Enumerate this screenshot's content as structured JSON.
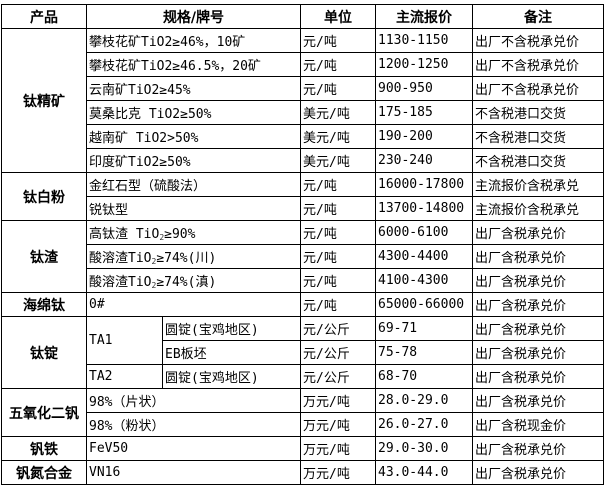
{
  "header": [
    "产品",
    "规格/牌号",
    "单位",
    "主流报价",
    "备注"
  ],
  "rows": [
    {
      "product": "钛精矿",
      "rowspan": 6,
      "spec": [
        "攀枝花矿TiO2≥46%，10矿"
      ],
      "unit": "元/吨",
      "price": "1130-1150",
      "note": "出厂不含税承兑价"
    },
    {
      "spec": [
        "攀枝花矿TiO2≥46.5%，20矿"
      ],
      "unit": "元/吨",
      "price": "1200-1250",
      "note": "出厂不含税承兑价"
    },
    {
      "spec": [
        "云南矿TiO2≥45%"
      ],
      "unit": "元/吨",
      "price": "900-950",
      "note": "出厂不含税承兑价"
    },
    {
      "spec": [
        "莫桑比克 TiO2≥50%"
      ],
      "unit": "美元/吨",
      "price": "175-185",
      "note": "不含税港口交货"
    },
    {
      "spec": [
        "越南矿 TiO2>50%"
      ],
      "unit": "美元/吨",
      "price": "190-200",
      "note": "不含税港口交货"
    },
    {
      "spec": [
        "印度矿TiO2≥50%"
      ],
      "unit": "美元/吨",
      "price": "230-240",
      "note": "不含税港口交货"
    },
    {
      "product": "钛白粉",
      "rowspan": 2,
      "spec": [
        "金红石型（硫酸法）"
      ],
      "unit": "元/吨",
      "price": "16000-17800",
      "note": "主流报价含税承兑"
    },
    {
      "spec": [
        "锐钛型"
      ],
      "unit": "元/吨",
      "price": "13700-14800",
      "note": "主流报价含税承兑"
    },
    {
      "product": "钛渣",
      "rowspan": 3,
      "spec": [
        "高钛渣 TiO",
        "2",
        "≥90%"
      ],
      "unit": "元/吨",
      "price": "6000-6100",
      "note": "出厂含税承兑价"
    },
    {
      "spec": [
        "酸溶渣TiO",
        "2",
        "≥74%(川)"
      ],
      "unit": "元/吨",
      "price": "4300-4400",
      "note": "出厂含税承兑价"
    },
    {
      "spec": [
        "酸溶渣TiO",
        "2",
        "≥74%(滇)"
      ],
      "unit": "元/吨",
      "price": "4100-4300",
      "note": "出厂含税承兑价"
    },
    {
      "product": "海绵钛",
      "rowspan": 1,
      "spec": [
        "0#"
      ],
      "unit": "元/吨",
      "price": "65000-66000",
      "note": "出厂含税承兑价"
    },
    {
      "product": "钛锭",
      "rowspan": 3,
      "grade": "TA1",
      "grade_rowspan": 2,
      "form": "圆锭(宝鸡地区)",
      "unit": "元/公斤",
      "price": "69-71",
      "note": "出厂含税承兑价"
    },
    {
      "form": "EB板坯",
      "unit": "元/公斤",
      "price": "75-78",
      "note": "出厂含税承兑价"
    },
    {
      "grade": "TA2",
      "grade_rowspan": 1,
      "form": "圆锭(宝鸡地区)",
      "unit": "元/公斤",
      "price": "68-70",
      "note": "出厂含税承兑价"
    },
    {
      "product": "五氧化二钒",
      "rowspan": 2,
      "spec": [
        "98%（片状）"
      ],
      "unit": "万元/吨",
      "price": "28.0-29.0",
      "note": "出厂含税承兑价"
    },
    {
      "spec": [
        "98%（粉状）"
      ],
      "unit": "万元/吨",
      "price": "26.0-27.0",
      "note": "出厂含税现金价"
    },
    {
      "product": "钒铁",
      "rowspan": 1,
      "spec": [
        "FeV50"
      ],
      "unit": "万元/吨",
      "price": "29.0-30.0",
      "note": "出厂含税承兑价"
    },
    {
      "product": "钒氮合金",
      "rowspan": 1,
      "spec": [
        "VN16"
      ],
      "unit": "万元/吨",
      "price": "43.0-44.0",
      "note": "出厂含税承兑价"
    }
  ]
}
